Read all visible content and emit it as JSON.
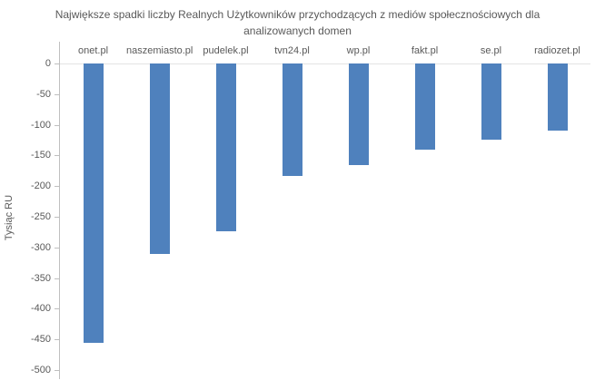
{
  "chart_data": {
    "type": "bar",
    "title": "Największe spadki liczby Realnych Użytkowników przychodzących z mediów społecznościowych dla analizowanych domen",
    "ylabel": "Tysiąc RU",
    "xlabel": "",
    "categories": [
      "onet.pl",
      "naszemiasto.pl",
      "pudelek.pl",
      "tvn24.pl",
      "wp.pl",
      "fakt.pl",
      "se.pl",
      "radiozet.pl"
    ],
    "values": [
      -455,
      -310,
      -273,
      -183,
      -166,
      -140,
      -124,
      -110
    ],
    "ylim": [
      -500,
      0
    ],
    "ytick_step": 50,
    "grid": false,
    "legend_position": "none",
    "category_label_position": "above-zero-line",
    "bar_color": "#4f81bd",
    "axis_color": "#bfbfbf",
    "text_color": "#595959"
  }
}
